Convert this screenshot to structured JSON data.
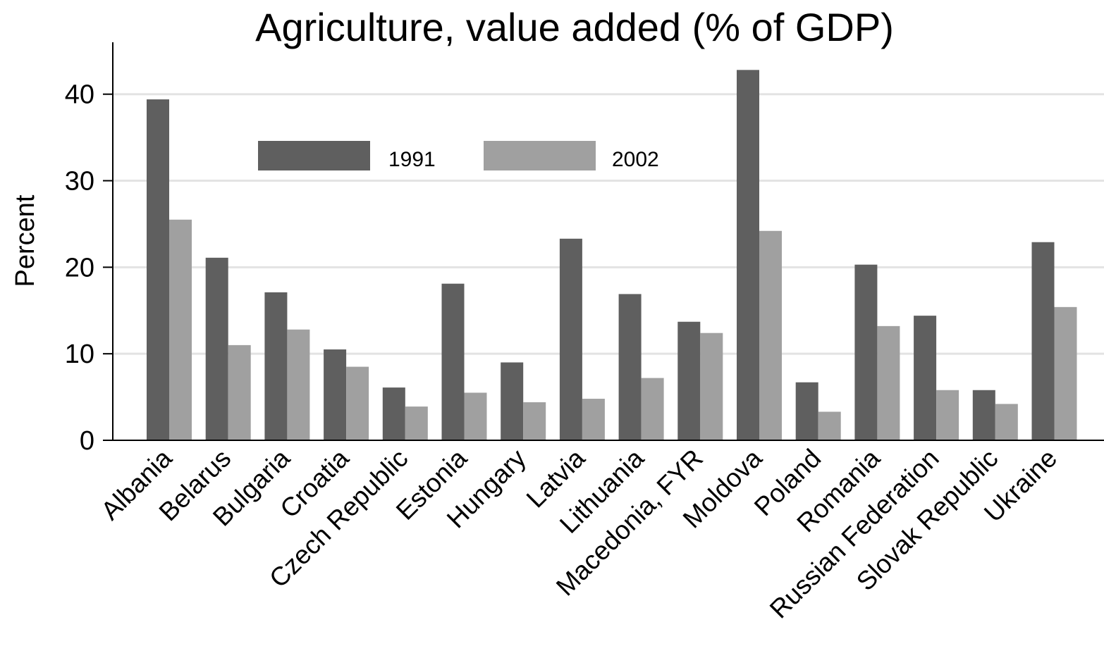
{
  "chart_data": {
    "type": "bar",
    "title": "Agriculture, value added (% of GDP)",
    "xlabel": "",
    "ylabel": "Percent",
    "ylim": [
      0,
      46
    ],
    "yticks": [
      0,
      10,
      20,
      30,
      40
    ],
    "grid": true,
    "legend_position": "top-center",
    "categories": [
      "Albania",
      "Belarus",
      "Bulgaria",
      "Croatia",
      "Czech Republic",
      "Estonia",
      "Hungary",
      "Latvia",
      "Lithuania",
      "Macedonia, FYR",
      "Moldova",
      "Poland",
      "Romania",
      "Russian Federation",
      "Slovak Republic",
      "Ukraine"
    ],
    "series": [
      {
        "name": "1991",
        "color": "#5f5f5f",
        "values": [
          39.4,
          21.1,
          17.1,
          10.5,
          6.1,
          18.1,
          9.0,
          23.3,
          16.9,
          13.7,
          42.8,
          6.7,
          20.3,
          14.4,
          5.8,
          22.9
        ]
      },
      {
        "name": "2002",
        "color": "#a0a0a0",
        "values": [
          25.5,
          11.0,
          12.8,
          8.5,
          3.9,
          5.5,
          4.4,
          4.8,
          7.2,
          12.4,
          24.2,
          3.3,
          13.2,
          5.8,
          4.2,
          15.4
        ]
      }
    ]
  }
}
